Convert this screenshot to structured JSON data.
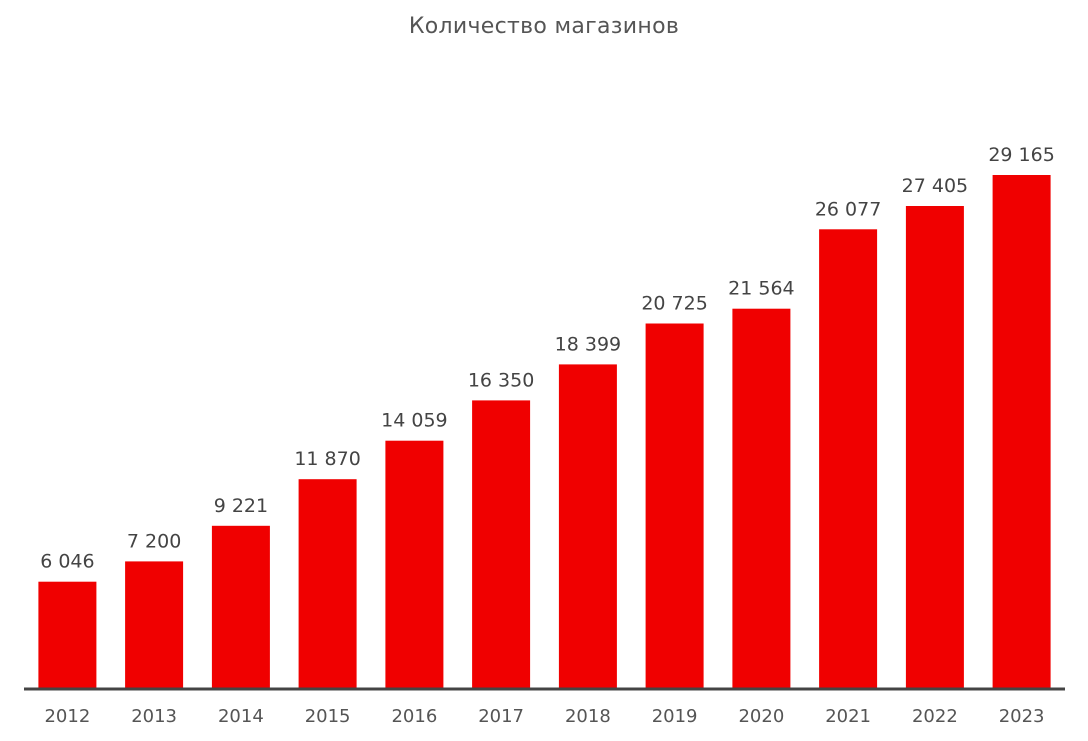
{
  "chart_data": {
    "type": "bar",
    "title": "Количество магазинов",
    "xlabel": "",
    "ylabel": "",
    "categories": [
      "2012",
      "2013",
      "2014",
      "2015",
      "2016",
      "2017",
      "2018",
      "2019",
      "2020",
      "2021",
      "2022",
      "2023"
    ],
    "values": [
      6046,
      7200,
      9221,
      11870,
      14059,
      16350,
      18399,
      20725,
      21564,
      26077,
      27405,
      29165
    ],
    "value_labels": [
      "6 046",
      "7 200",
      "9 221",
      "11 870",
      "14 059",
      "16 350",
      "18 399",
      "20 725",
      "21 564",
      "26 077",
      "27 405",
      "29 165"
    ],
    "ylim": [
      0,
      32000
    ],
    "grid": false,
    "legend": "none",
    "colors": {
      "bar": "#F00000",
      "axis": "#444444",
      "text": "#555555"
    }
  }
}
